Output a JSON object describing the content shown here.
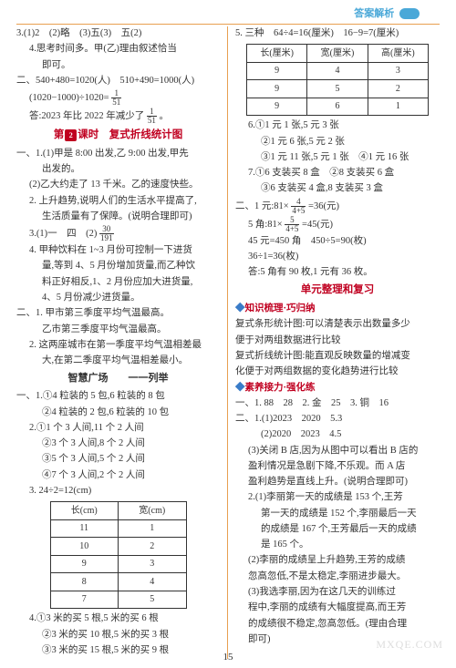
{
  "header": {
    "title": "答案解析"
  },
  "left": {
    "l01": "3.(1)2　(2)略　(3)五(3)　五(2)",
    "l02": "4.思考时间多。甲(乙)理由叙述恰当",
    "l03": "即可。",
    "l04": "二、540+480=1020(人)　510+490=1000(人)",
    "l05a": "(1020−1000)÷1020=",
    "l05_frac": {
      "n": "1",
      "d": "51"
    },
    "l06a": "答:2023 年比 2022 年减少了",
    "l06_frac": {
      "n": "1",
      "d": "51"
    },
    "l06b": "。",
    "sec1a": "第",
    "sec1num": "2",
    "sec1b": "课时　复式折线统计图",
    "l07": "一、1.(1)甲是 8:00 出发,乙 9:00 出发,甲先",
    "l08": "出发的。",
    "l09": "(2)乙大约走了 13 千米。乙的速度快些。",
    "l10": "2. 上升趋势,说明人们的生活水平提高了,",
    "l11": "生活质量有了保障。(说明合理即可)",
    "l12a": "3.(1)一　四　(2)",
    "l12_frac": {
      "n": "30",
      "d": "191"
    },
    "l13": "4. 甲种饮料在 1~3 月份可控制一下进货",
    "l14": "量,等到 4、5 月份增加货量,而乙种饮",
    "l15": "料正好相反,1、2 月份应加大进货量,",
    "l16": "4、5 月份减少进货量。",
    "l17": "二、1. 甲市第三季度平均气温最高。",
    "l18": "乙市第三季度平均气温最高。",
    "l19": "2. 这两座城市在第一季度平均气温相差最",
    "l20": "大,在第二季度平均气温相差最小。",
    "sec2": "智慧广场　　一一列举",
    "l21": "一、1.①4 粒装的 5 包,6 粒装的 8 包",
    "l22": "②4 粒装的 2 包,6 粒装的 10 包",
    "l23": "2.①1 个 3 人间,11 个 2 人间",
    "l24": "②3 个 3 人间,8 个 2 人间",
    "l25": "③5 个 3 人间,5 个 2 人间",
    "l26": "④7 个 3 人间,2 个 2 人间",
    "l27": "3. 24÷2=12(cm)",
    "tbl1": {
      "headers": [
        "长(cm)",
        "宽(cm)"
      ],
      "rows": [
        [
          "11",
          "1"
        ],
        [
          "10",
          "2"
        ],
        [
          "9",
          "3"
        ],
        [
          "8",
          "4"
        ],
        [
          "7",
          "5"
        ]
      ]
    },
    "l28": "4.①3 米的买 5 根,5 米的买 6 根",
    "l29": "②3 米的买 10 根,5 米的买 3 根",
    "l30": "③3 米的买 15 根,5 米的买 9 根"
  },
  "right": {
    "r01": "5. 三种　64÷4=16(厘米)　16−9=7(厘米)",
    "tbl2": {
      "headers": [
        "长(厘米)",
        "宽(厘米)",
        "高(厘米)"
      ],
      "rows": [
        [
          "9",
          "4",
          "3"
        ],
        [
          "9",
          "5",
          "2"
        ],
        [
          "9",
          "6",
          "1"
        ]
      ]
    },
    "r02": "6.①1 元 1 张,5 元 3 张",
    "r03": "②1 元 6 张,5 元 2 张",
    "r04": "③1 元 11 张,5 元 1 张　④1 元 16 张",
    "r05": "7.①6 支装买 8 盒　②8 支装买 6 盒",
    "r06": "③6 支装买 4 盒,8 支装买 3 盒",
    "r07a": "二、1 元:81×",
    "r07_frac": {
      "n": "4",
      "d": "4+5"
    },
    "r07b": "=36(元)",
    "r08a": "5 角:81×",
    "r08_frac": {
      "n": "5",
      "d": "4+5"
    },
    "r08b": "=45(元)",
    "r09": "45 元=450 角　450÷5=90(枚)",
    "r10": "36÷1=36(枚)",
    "r11": "答:5 角有 90 枚,1 元有 36 枚。",
    "sec3": "单元整理和复习",
    "r12": "知识梳理·巧归纳",
    "r13": "复式条形统计图:可以清楚表示出数量多少",
    "r14": "便于对两组数据进行比较",
    "r15": "复式折线统计图:能直观反映数量的增减变",
    "r16": "化便于对两组数据的变化趋势进行比较",
    "r17": "素养接力·强化练",
    "r18": "一、1. 88　28　2. 金　25　3. 铜　16",
    "r19": "二、1.(1)2023　2020　5.3",
    "r20": "(2)2020　2023　4.5",
    "r21": "(3)关闭 B 店,因为从图中可以看出 B 店的",
    "r22": "盈利情况是急剧下降,不乐观。而 A 店",
    "r23": "盈利趋势是直线上升。(说明合理即可)",
    "r24": "2.(1)李丽第一天的成绩是 153 个,王芳",
    "r25": "第一天的成绩是 152 个,李丽最后一天",
    "r26": "的成绩是 167 个,王芳最后一天的成绩",
    "r27": "是 165 个。",
    "r28": "(2)李丽的成绩呈上升趋势,王芳的成绩",
    "r29": "忽高忽低,不是太稳定,李丽进步最大。",
    "r30": "(3)我选李丽,因为在这几天的训练过",
    "r31": "程中,李丽的成绩有大幅度提高,而王芳",
    "r32": "的成绩很不稳定,忽高忽低。(理由合理",
    "r33": "即可)"
  },
  "page": "15",
  "watermark": "MXQE.COM"
}
